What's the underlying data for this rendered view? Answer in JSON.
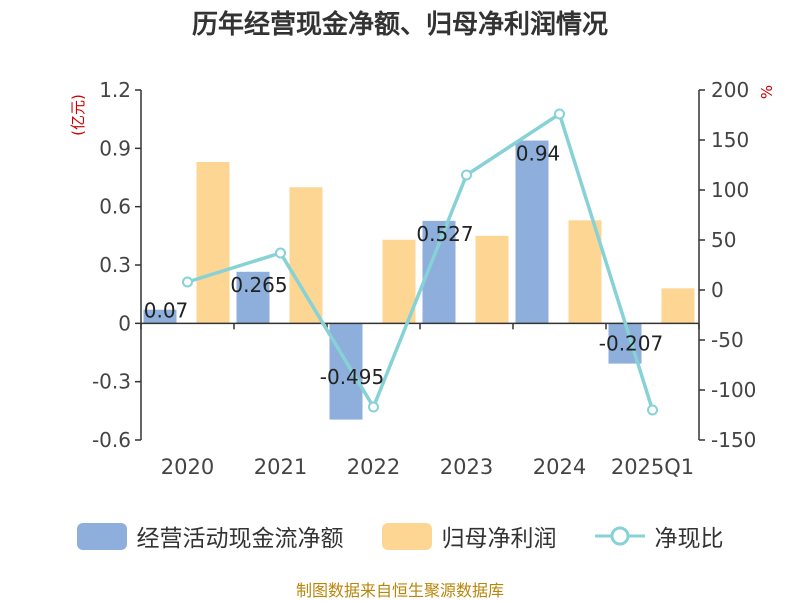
{
  "chart_data": {
    "type": "bar",
    "title": "历年经营现金净额、归母净利润情况",
    "categories": [
      "2020",
      "2021",
      "2022",
      "2023",
      "2024",
      "2025Q1"
    ],
    "y_left_unit": "(亿元)",
    "y_right_unit": "%",
    "y_left_ticks": [
      "1.2",
      "0.9",
      "0.6",
      "0.3",
      "0",
      "-0.3",
      "-0.6"
    ],
    "y_right_ticks": [
      "200",
      "150",
      "100",
      "50",
      "0",
      "-50",
      "-100",
      "-150"
    ],
    "ylim_left": [
      -0.6,
      1.2
    ],
    "ylim_right": [
      -150,
      200
    ],
    "series": [
      {
        "name": "经营活动现金流净额",
        "kind": "bar",
        "axis": "left",
        "color": "#8eaedb",
        "values": [
          0.07,
          0.265,
          -0.495,
          0.527,
          0.94,
          -0.207
        ],
        "labels": [
          "0.07",
          "0.265",
          "-0.495",
          "0.527",
          "0.94",
          "-0.207"
        ]
      },
      {
        "name": "归母净利润",
        "kind": "bar",
        "axis": "left",
        "color": "#fdd694",
        "values": [
          0.83,
          0.7,
          0.43,
          0.45,
          0.53,
          0.18
        ]
      },
      {
        "name": "净现比",
        "kind": "line",
        "axis": "right",
        "color": "#86d2d6",
        "values": [
          8,
          37,
          -117,
          115,
          176,
          -120
        ]
      }
    ],
    "legend_position": "bottom",
    "grid": false
  },
  "source": "制图数据来自恒生聚源数据库"
}
